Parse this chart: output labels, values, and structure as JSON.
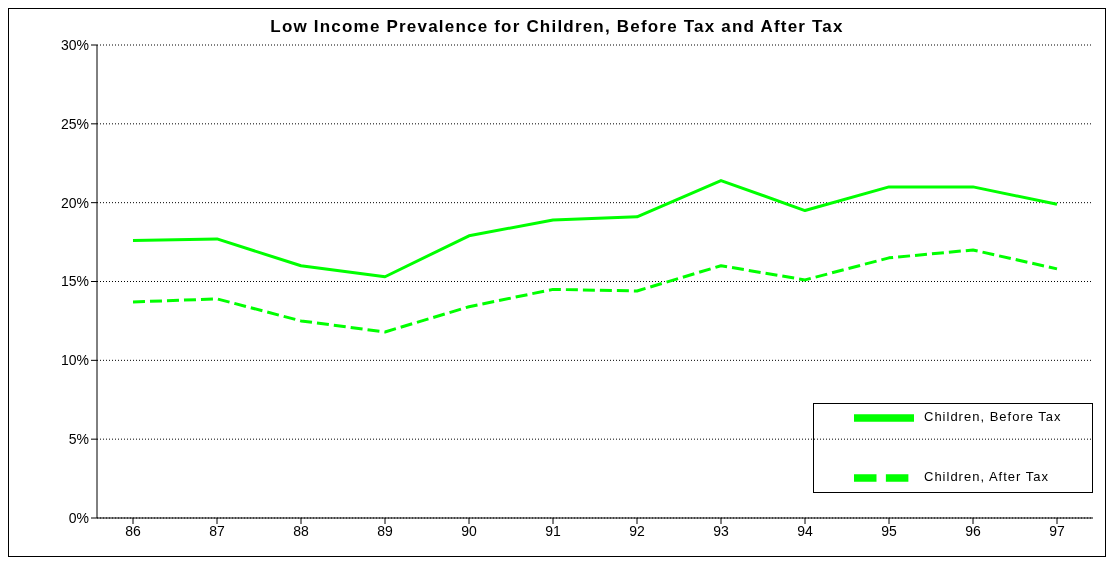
{
  "chart_data": {
    "type": "line",
    "title": "Low Income Prevalence for Children, Before Tax and After Tax",
    "categories": [
      "86",
      "87",
      "88",
      "89",
      "90",
      "91",
      "92",
      "93",
      "94",
      "95",
      "96",
      "97"
    ],
    "series": [
      {
        "name": "Children, Before Tax",
        "color": "#00ff00",
        "line_style": "solid",
        "values": [
          17.6,
          17.7,
          16.0,
          15.3,
          17.9,
          18.9,
          19.1,
          21.4,
          19.5,
          21.0,
          21.0,
          19.9
        ]
      },
      {
        "name": "Children, After Tax",
        "color": "#00ff00",
        "line_style": "dashed",
        "values": [
          13.7,
          13.9,
          12.5,
          11.8,
          13.4,
          14.5,
          14.4,
          16.0,
          15.1,
          16.5,
          17.0,
          15.8
        ]
      }
    ],
    "ylim": [
      0,
      30
    ],
    "yticks": [
      {
        "value": 0,
        "label": "0%"
      },
      {
        "value": 5,
        "label": "5%"
      },
      {
        "value": 10,
        "label": "10%"
      },
      {
        "value": 15,
        "label": "15%"
      },
      {
        "value": 20,
        "label": "20%"
      },
      {
        "value": 25,
        "label": "25%"
      },
      {
        "value": 30,
        "label": "30%"
      }
    ],
    "grid": "y",
    "legend": "bottom right",
    "marker": "none"
  }
}
